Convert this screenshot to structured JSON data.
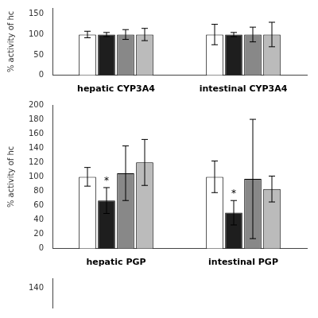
{
  "chart_data": [
    {
      "type": "bar",
      "categories": [
        "hepatic CYP3A4",
        "intestinal CYP3A4"
      ],
      "series": [
        {
          "color": "#ffffff",
          "values": [
            100,
            100
          ],
          "errors": [
            8,
            25
          ]
        },
        {
          "color": "#1e1e1e",
          "values": [
            100,
            100
          ],
          "errors": [
            5,
            5
          ]
        },
        {
          "color": "#888888",
          "values": [
            100,
            100
          ],
          "errors": [
            12,
            18
          ]
        },
        {
          "color": "#bbbbbb",
          "values": [
            100,
            100
          ],
          "errors": [
            15,
            30
          ]
        }
      ],
      "ylabel": "% activity of hc",
      "ylim": [
        0,
        165
      ],
      "yticks": [
        0,
        50,
        100,
        150
      ],
      "grid": false
    },
    {
      "type": "bar",
      "categories": [
        "hepatic PGP",
        "intestinal PGP"
      ],
      "series": [
        {
          "color": "#ffffff",
          "values": [
            100,
            100
          ],
          "errors": [
            13,
            22
          ]
        },
        {
          "color": "#1e1e1e",
          "values": [
            67,
            50
          ],
          "errors": [
            18,
            17
          ]
        },
        {
          "color": "#888888",
          "values": [
            105,
            97
          ],
          "errors": [
            38,
            83
          ]
        },
        {
          "color": "#bbbbbb",
          "values": [
            120,
            83
          ],
          "errors": [
            32,
            18
          ]
        }
      ],
      "ylabel": "% activity of hc",
      "ylim": [
        0,
        200
      ],
      "yticks": [
        0,
        20,
        40,
        60,
        80,
        100,
        120,
        140,
        160,
        180,
        200
      ],
      "grid": false,
      "annotations": [
        {
          "text": "*",
          "category": "hepatic PGP",
          "series": 1
        },
        {
          "text": "*",
          "category": "intestinal PGP",
          "series": 1
        }
      ]
    },
    {
      "type": "bar",
      "ylim": [
        130,
        145
      ],
      "yticks": [
        140
      ],
      "tick_labels": "y",
      "grid": false
    }
  ]
}
